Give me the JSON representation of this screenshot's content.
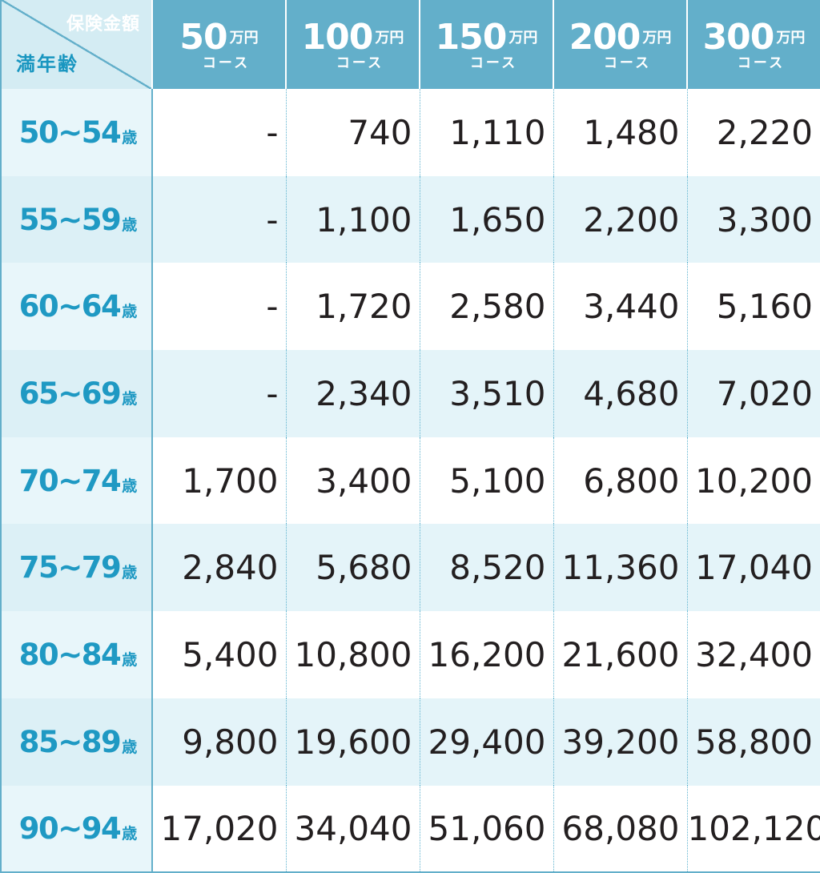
{
  "header": {
    "corner_top": "保険金額",
    "corner_bottom": "満年齢",
    "courses": [
      {
        "amount": "50",
        "unit": "万円",
        "label": "コース"
      },
      {
        "amount": "100",
        "unit": "万円",
        "label": "コース"
      },
      {
        "amount": "150",
        "unit": "万円",
        "label": "コース"
      },
      {
        "amount": "200",
        "unit": "万円",
        "label": "コース"
      },
      {
        "amount": "300",
        "unit": "万円",
        "label": "コース"
      }
    ]
  },
  "rows": [
    {
      "age": "50~54",
      "unit": "歳",
      "values": [
        "-",
        "740",
        "1,110",
        "1,480",
        "2,220"
      ]
    },
    {
      "age": "55~59",
      "unit": "歳",
      "values": [
        "-",
        "1,100",
        "1,650",
        "2,200",
        "3,300"
      ]
    },
    {
      "age": "60~64",
      "unit": "歳",
      "values": [
        "-",
        "1,720",
        "2,580",
        "3,440",
        "5,160"
      ]
    },
    {
      "age": "65~69",
      "unit": "歳",
      "values": [
        "-",
        "2,340",
        "3,510",
        "4,680",
        "7,020"
      ]
    },
    {
      "age": "70~74",
      "unit": "歳",
      "values": [
        "1,700",
        "3,400",
        "5,100",
        "6,800",
        "10,200"
      ]
    },
    {
      "age": "75~79",
      "unit": "歳",
      "values": [
        "2,840",
        "5,680",
        "8,520",
        "11,360",
        "17,040"
      ]
    },
    {
      "age": "80~84",
      "unit": "歳",
      "values": [
        "5,400",
        "10,800",
        "16,200",
        "21,600",
        "32,400"
      ]
    },
    {
      "age": "85~89",
      "unit": "歳",
      "values": [
        "9,800",
        "19,600",
        "29,400",
        "39,200",
        "58,800"
      ]
    },
    {
      "age": "90~94",
      "unit": "歳",
      "values": [
        "17,020",
        "34,040",
        "51,060",
        "68,080",
        "102,120"
      ]
    }
  ],
  "colors": {
    "header_bg": "#63afca",
    "age_text": "#1f99c3",
    "row_alt_bg": "#e4f4f9",
    "value_text": "#231f20"
  }
}
